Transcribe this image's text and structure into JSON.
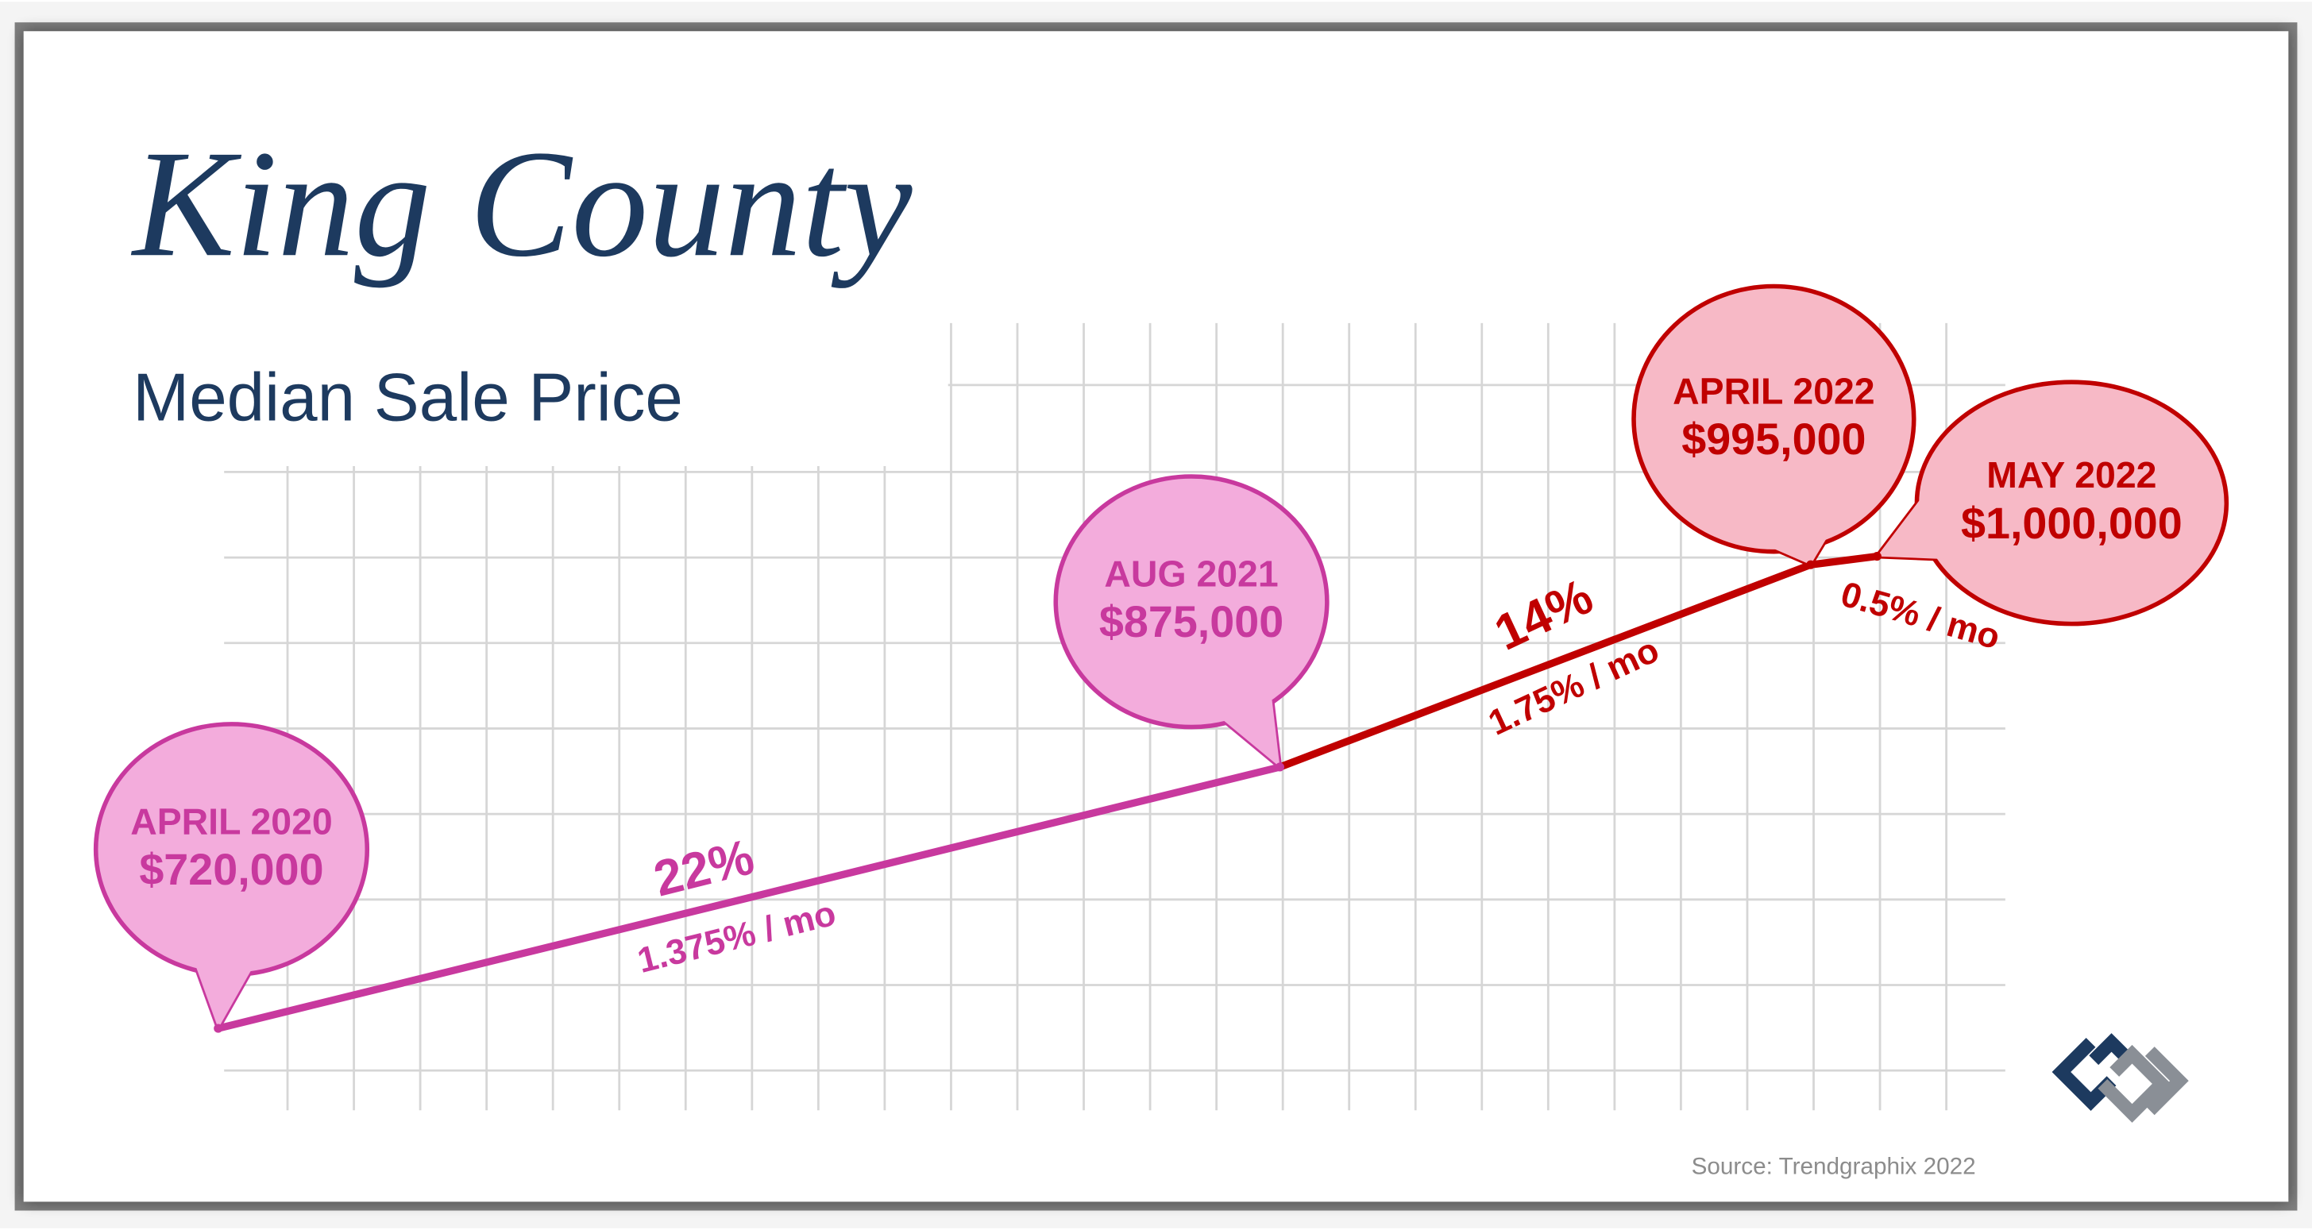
{
  "chart_data": {
    "type": "line",
    "title": "King County",
    "subtitle": "Median Sale Price",
    "categories": [
      "APRIL 2020",
      "AUG 2021",
      "APRIL 2022",
      "MAY 2022"
    ],
    "values": [
      720000,
      875000,
      995000,
      1000000
    ],
    "value_labels": [
      "$720,000",
      "$875,000",
      "$995,000",
      "$1,000,000"
    ],
    "point_colors": [
      "#c8399e",
      "#c8399e",
      "#c00000",
      "#c00000"
    ],
    "ylim": [
      695000,
      1050000
    ],
    "grid": true,
    "annotations": [
      {
        "pct": "22%",
        "rate": "1.375% / mo"
      },
      {
        "pct": "14%",
        "rate": "1.75% / mo"
      },
      {
        "rate": "0.5% / mo"
      }
    ],
    "source": "Source: Trendgraphix 2022"
  }
}
